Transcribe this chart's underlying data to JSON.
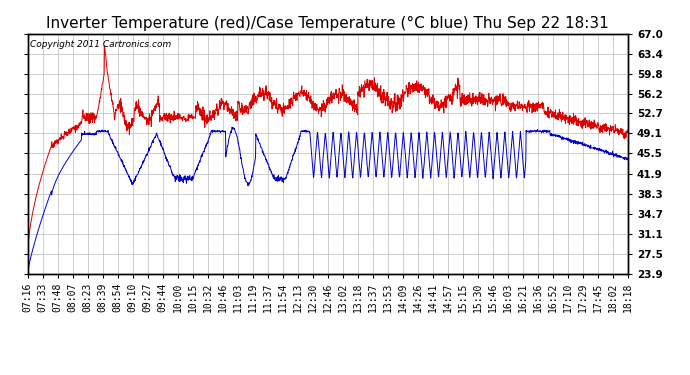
{
  "title": "Inverter Temperature (red)/Case Temperature (°C blue) Thu Sep 22 18:31",
  "copyright": "Copyright 2011 Cartronics.com",
  "ylabel_right_ticks": [
    23.9,
    27.5,
    31.1,
    34.7,
    38.3,
    41.9,
    45.5,
    49.1,
    52.7,
    56.2,
    59.8,
    63.4,
    67.0
  ],
  "ylim": [
    23.9,
    67.0
  ],
  "bg_color": "#ffffff",
  "plot_bg_color": "#ffffff",
  "grid_color": "#bbbbbb",
  "red_color": "#dd0000",
  "blue_color": "#0000cc",
  "title_fontsize": 11,
  "copyright_fontsize": 6.5,
  "tick_fontsize": 7.5
}
